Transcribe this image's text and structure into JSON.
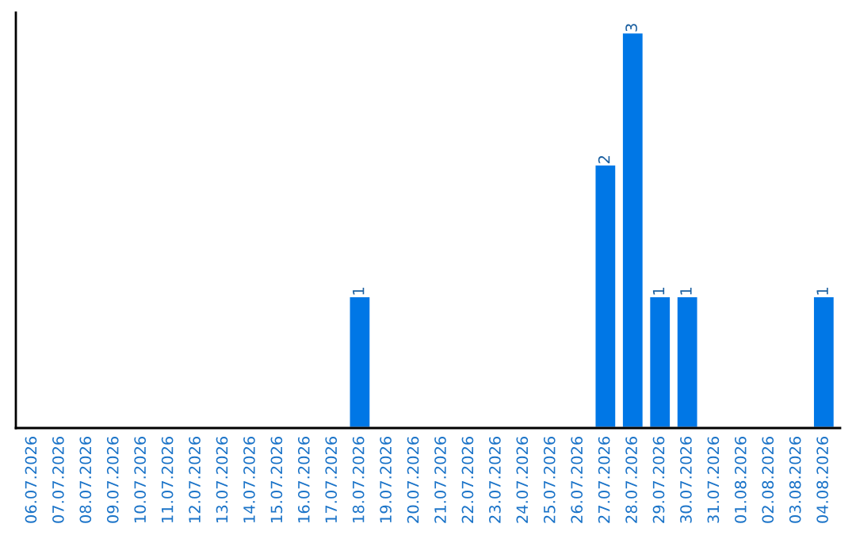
{
  "chart_data": {
    "type": "bar",
    "categories": [
      "06.07.2026",
      "07.07.2026",
      "08.07.2026",
      "09.07.2026",
      "10.07.2026",
      "11.07.2026",
      "12.07.2026",
      "13.07.2026",
      "14.07.2026",
      "15.07.2026",
      "16.07.2026",
      "17.07.2026",
      "18.07.2026",
      "19.07.2026",
      "20.07.2026",
      "21.07.2026",
      "22.07.2026",
      "23.07.2026",
      "24.07.2026",
      "25.07.2026",
      "26.07.2026",
      "27.07.2026",
      "28.07.2026",
      "29.07.2026",
      "30.07.2026",
      "31.07.2026",
      "01.08.2026",
      "02.08.2026",
      "03.08.2026",
      "04.08.2026"
    ],
    "values": [
      null,
      null,
      null,
      null,
      null,
      null,
      null,
      null,
      null,
      null,
      null,
      null,
      1,
      null,
      null,
      null,
      null,
      null,
      null,
      null,
      null,
      2,
      3,
      1,
      1,
      null,
      null,
      null,
      null,
      1
    ],
    "data_labels": true,
    "color": "#0077e6",
    "ylim": [
      0,
      3.15
    ],
    "tick_labels": "x",
    "grid": false,
    "legend": false
  }
}
